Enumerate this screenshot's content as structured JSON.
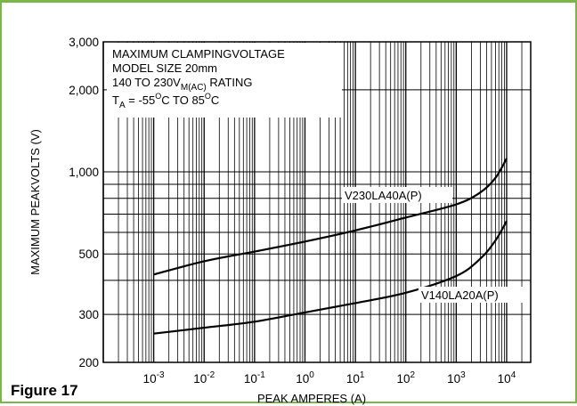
{
  "figure_label": "Figure 17",
  "chart_data": {
    "type": "line",
    "title": "",
    "xlabel": "PEAK AMPERES (A)",
    "ylabel": "MAXIMUM PEAKVOLTS (V)",
    "x_scale": "log",
    "y_scale": "log",
    "xlim": [
      0.0001,
      30000
    ],
    "ylim": [
      200,
      3000
    ],
    "grid": true,
    "x_ticks": [
      {
        "value": 0.001,
        "base": "10",
        "exp": "-3"
      },
      {
        "value": 0.01,
        "base": "10",
        "exp": "-2"
      },
      {
        "value": 0.1,
        "base": "10",
        "exp": "-1"
      },
      {
        "value": 1,
        "base": "10",
        "exp": "0"
      },
      {
        "value": 10,
        "base": "10",
        "exp": "1"
      },
      {
        "value": 100,
        "base": "10",
        "exp": "2"
      },
      {
        "value": 1000,
        "base": "10",
        "exp": "3"
      },
      {
        "value": 10000,
        "base": "10",
        "exp": "4"
      }
    ],
    "y_ticks": [
      {
        "value": 200,
        "label": "200"
      },
      {
        "value": 300,
        "label": "300"
      },
      {
        "value": 500,
        "label": "500"
      },
      {
        "value": 1000,
        "label": "1,000"
      },
      {
        "value": 2000,
        "label": "2,000"
      },
      {
        "value": 3000,
        "label": "3,000"
      }
    ],
    "annotation": {
      "line1": "MAXIMUM CLAMPINGVOLTAGE",
      "line2": "MODEL SIZE 20mm",
      "line3_pre": "140 TO 230V",
      "line3_sub": "M(AC)",
      "line3_post": " RATING",
      "line4_t": "T",
      "line4_sub": "A",
      "line4_mid": " = -55",
      "line4_sup1": "O",
      "line4_mid2": "C TO 85",
      "line4_sup2": "O",
      "line4_end": "C"
    },
    "series": [
      {
        "name": "V230LA40A(P)",
        "x": [
          0.001,
          0.01,
          0.1,
          1,
          10,
          100,
          1000,
          3000,
          6000,
          10000
        ],
        "y": [
          420,
          470,
          510,
          555,
          610,
          680,
          760,
          840,
          950,
          1120
        ]
      },
      {
        "name": "V140LA20A(P)",
        "x": [
          0.001,
          0.01,
          0.1,
          1,
          10,
          100,
          1000,
          3000,
          6000,
          10000
        ],
        "y": [
          255,
          268,
          282,
          305,
          330,
          360,
          415,
          480,
          560,
          660
        ]
      }
    ]
  }
}
